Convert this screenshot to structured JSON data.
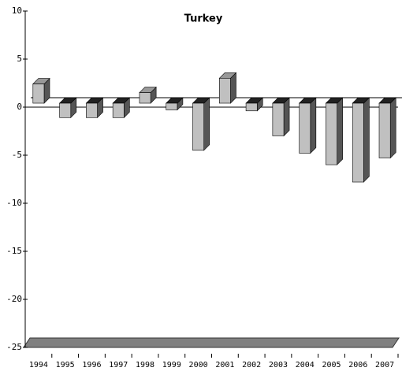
{
  "chart_data": {
    "type": "bar3d",
    "title": "Turkey",
    "categories": [
      "1994",
      "1995",
      "1996",
      "1997",
      "1998",
      "1999",
      "2000",
      "2001",
      "2002",
      "2003",
      "2004",
      "2005",
      "2006",
      "2007"
    ],
    "values": [
      2.0,
      -1.5,
      -1.5,
      -1.5,
      1.1,
      -0.7,
      -4.9,
      2.6,
      -0.8,
      -3.4,
      -5.2,
      -6.4,
      -8.2,
      -5.7
    ],
    "color": "#c0c0c0",
    "ylim": [
      -25,
      10
    ],
    "yticks": [
      10,
      5,
      0,
      -5,
      -10,
      -15,
      -20,
      -25
    ]
  }
}
